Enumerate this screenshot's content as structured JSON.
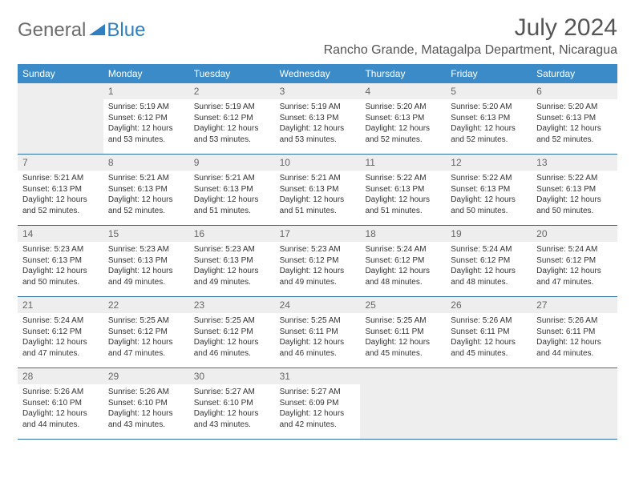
{
  "logo": {
    "text1": "General",
    "text2": "Blue"
  },
  "title": "July 2024",
  "location": "Rancho Grande, Matagalpa Department, Nicaragua",
  "colors": {
    "header_bg": "#3b8bc9",
    "header_text": "#ffffff",
    "day_num_bg": "#eeeeee",
    "divider": "#2f6fa5",
    "logo_grey": "#6b6b6b",
    "logo_blue": "#2f7fc1"
  },
  "day_names": [
    "Sunday",
    "Monday",
    "Tuesday",
    "Wednesday",
    "Thursday",
    "Friday",
    "Saturday"
  ],
  "weeks": [
    [
      null,
      {
        "n": "1",
        "sr": "Sunrise: 5:19 AM",
        "ss": "Sunset: 6:12 PM",
        "dl": "Daylight: 12 hours and 53 minutes."
      },
      {
        "n": "2",
        "sr": "Sunrise: 5:19 AM",
        "ss": "Sunset: 6:12 PM",
        "dl": "Daylight: 12 hours and 53 minutes."
      },
      {
        "n": "3",
        "sr": "Sunrise: 5:19 AM",
        "ss": "Sunset: 6:13 PM",
        "dl": "Daylight: 12 hours and 53 minutes."
      },
      {
        "n": "4",
        "sr": "Sunrise: 5:20 AM",
        "ss": "Sunset: 6:13 PM",
        "dl": "Daylight: 12 hours and 52 minutes."
      },
      {
        "n": "5",
        "sr": "Sunrise: 5:20 AM",
        "ss": "Sunset: 6:13 PM",
        "dl": "Daylight: 12 hours and 52 minutes."
      },
      {
        "n": "6",
        "sr": "Sunrise: 5:20 AM",
        "ss": "Sunset: 6:13 PM",
        "dl": "Daylight: 12 hours and 52 minutes."
      }
    ],
    [
      {
        "n": "7",
        "sr": "Sunrise: 5:21 AM",
        "ss": "Sunset: 6:13 PM",
        "dl": "Daylight: 12 hours and 52 minutes."
      },
      {
        "n": "8",
        "sr": "Sunrise: 5:21 AM",
        "ss": "Sunset: 6:13 PM",
        "dl": "Daylight: 12 hours and 52 minutes."
      },
      {
        "n": "9",
        "sr": "Sunrise: 5:21 AM",
        "ss": "Sunset: 6:13 PM",
        "dl": "Daylight: 12 hours and 51 minutes."
      },
      {
        "n": "10",
        "sr": "Sunrise: 5:21 AM",
        "ss": "Sunset: 6:13 PM",
        "dl": "Daylight: 12 hours and 51 minutes."
      },
      {
        "n": "11",
        "sr": "Sunrise: 5:22 AM",
        "ss": "Sunset: 6:13 PM",
        "dl": "Daylight: 12 hours and 51 minutes."
      },
      {
        "n": "12",
        "sr": "Sunrise: 5:22 AM",
        "ss": "Sunset: 6:13 PM",
        "dl": "Daylight: 12 hours and 50 minutes."
      },
      {
        "n": "13",
        "sr": "Sunrise: 5:22 AM",
        "ss": "Sunset: 6:13 PM",
        "dl": "Daylight: 12 hours and 50 minutes."
      }
    ],
    [
      {
        "n": "14",
        "sr": "Sunrise: 5:23 AM",
        "ss": "Sunset: 6:13 PM",
        "dl": "Daylight: 12 hours and 50 minutes."
      },
      {
        "n": "15",
        "sr": "Sunrise: 5:23 AM",
        "ss": "Sunset: 6:13 PM",
        "dl": "Daylight: 12 hours and 49 minutes."
      },
      {
        "n": "16",
        "sr": "Sunrise: 5:23 AM",
        "ss": "Sunset: 6:13 PM",
        "dl": "Daylight: 12 hours and 49 minutes."
      },
      {
        "n": "17",
        "sr": "Sunrise: 5:23 AM",
        "ss": "Sunset: 6:12 PM",
        "dl": "Daylight: 12 hours and 49 minutes."
      },
      {
        "n": "18",
        "sr": "Sunrise: 5:24 AM",
        "ss": "Sunset: 6:12 PM",
        "dl": "Daylight: 12 hours and 48 minutes."
      },
      {
        "n": "19",
        "sr": "Sunrise: 5:24 AM",
        "ss": "Sunset: 6:12 PM",
        "dl": "Daylight: 12 hours and 48 minutes."
      },
      {
        "n": "20",
        "sr": "Sunrise: 5:24 AM",
        "ss": "Sunset: 6:12 PM",
        "dl": "Daylight: 12 hours and 47 minutes."
      }
    ],
    [
      {
        "n": "21",
        "sr": "Sunrise: 5:24 AM",
        "ss": "Sunset: 6:12 PM",
        "dl": "Daylight: 12 hours and 47 minutes."
      },
      {
        "n": "22",
        "sr": "Sunrise: 5:25 AM",
        "ss": "Sunset: 6:12 PM",
        "dl": "Daylight: 12 hours and 47 minutes."
      },
      {
        "n": "23",
        "sr": "Sunrise: 5:25 AM",
        "ss": "Sunset: 6:12 PM",
        "dl": "Daylight: 12 hours and 46 minutes."
      },
      {
        "n": "24",
        "sr": "Sunrise: 5:25 AM",
        "ss": "Sunset: 6:11 PM",
        "dl": "Daylight: 12 hours and 46 minutes."
      },
      {
        "n": "25",
        "sr": "Sunrise: 5:25 AM",
        "ss": "Sunset: 6:11 PM",
        "dl": "Daylight: 12 hours and 45 minutes."
      },
      {
        "n": "26",
        "sr": "Sunrise: 5:26 AM",
        "ss": "Sunset: 6:11 PM",
        "dl": "Daylight: 12 hours and 45 minutes."
      },
      {
        "n": "27",
        "sr": "Sunrise: 5:26 AM",
        "ss": "Sunset: 6:11 PM",
        "dl": "Daylight: 12 hours and 44 minutes."
      }
    ],
    [
      {
        "n": "28",
        "sr": "Sunrise: 5:26 AM",
        "ss": "Sunset: 6:10 PM",
        "dl": "Daylight: 12 hours and 44 minutes."
      },
      {
        "n": "29",
        "sr": "Sunrise: 5:26 AM",
        "ss": "Sunset: 6:10 PM",
        "dl": "Daylight: 12 hours and 43 minutes."
      },
      {
        "n": "30",
        "sr": "Sunrise: 5:27 AM",
        "ss": "Sunset: 6:10 PM",
        "dl": "Daylight: 12 hours and 43 minutes."
      },
      {
        "n": "31",
        "sr": "Sunrise: 5:27 AM",
        "ss": "Sunset: 6:09 PM",
        "dl": "Daylight: 12 hours and 42 minutes."
      },
      null,
      null,
      null
    ]
  ]
}
